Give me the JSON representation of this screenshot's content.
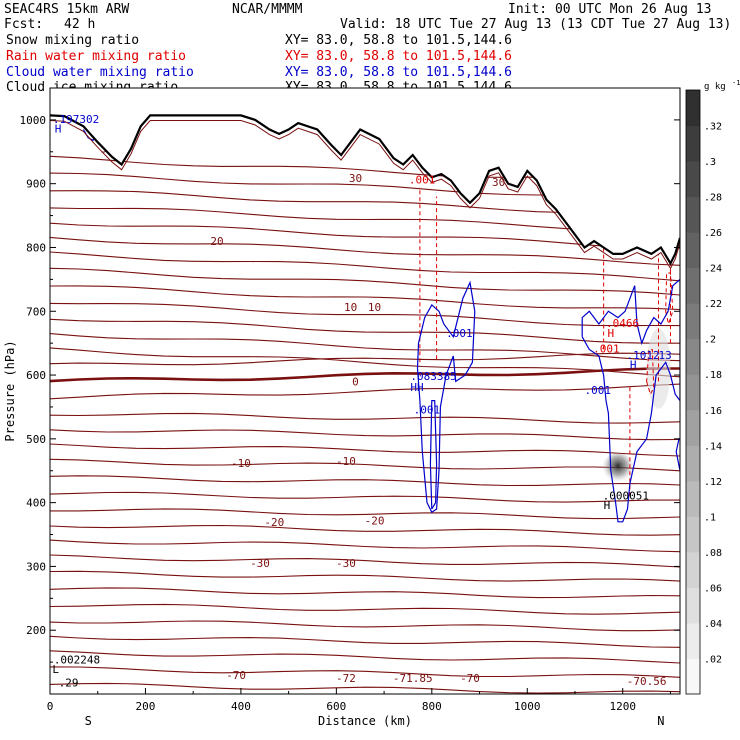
{
  "header": {
    "model": "SEAC4RS 15km ARW",
    "org": "NCAR/MMMM",
    "init": "Init: 00 UTC Mon 26 Aug 13",
    "fcst_label": "Fcst:",
    "fcst_value": "42 h",
    "valid": "Valid: 18 UTC Tue 27 Aug 13 (13 CDT Tue 27 Aug 13)",
    "fields": [
      {
        "name": "Snow mixing ratio",
        "xy": "XY=  83.0, 58.8 to 101.5,144.6",
        "color": "#000000"
      },
      {
        "name": "Rain water mixing ratio",
        "xy": "XY=  83.0, 58.8 to 101.5,144.6",
        "color": "#e00000"
      },
      {
        "name": "Cloud water mixing ratio",
        "xy": "XY=  83.0, 58.8 to 101.5,144.6",
        "color": "#0000cc"
      },
      {
        "name": "Cloud ice mixing ratio",
        "xy": "XY=  83.0, 58.8 to 101.5,144.6",
        "color": "#000000"
      }
    ]
  },
  "chart_data": {
    "type": "cross-section",
    "xlabel": "Distance (km)",
    "ylabel": "Pressure (hPa)",
    "xlim": [
      0,
      1320
    ],
    "ylim": [
      1050,
      100
    ],
    "x_ticks": [
      0,
      200,
      400,
      600,
      800,
      1000,
      1200
    ],
    "y_ticks": [
      200,
      300,
      400,
      500,
      600,
      700,
      800,
      900,
      1000
    ],
    "endpoints": {
      "left": "S",
      "right": "N"
    },
    "colorbar": {
      "unit": "g kg",
      "unit_sup": "-1",
      "ticks": [
        ".02",
        ".04",
        ".06",
        ".08",
        ".1",
        ".12",
        ".14",
        ".16",
        ".18",
        ".2",
        ".22",
        ".24",
        ".26",
        ".28",
        ".3",
        ".32"
      ],
      "range": [
        0,
        0.34
      ]
    },
    "terrain_pressure": [
      [
        0,
        1007
      ],
      [
        30,
        1006
      ],
      [
        70,
        990
      ],
      [
        100,
        965
      ],
      [
        130,
        942
      ],
      [
        150,
        930
      ],
      [
        170,
        955
      ],
      [
        190,
        990
      ],
      [
        210,
        1007
      ],
      [
        300,
        1007
      ],
      [
        400,
        1007
      ],
      [
        430,
        1000
      ],
      [
        460,
        985
      ],
      [
        480,
        978
      ],
      [
        500,
        985
      ],
      [
        520,
        995
      ],
      [
        560,
        985
      ],
      [
        590,
        960
      ],
      [
        610,
        945
      ],
      [
        630,
        965
      ],
      [
        650,
        985
      ],
      [
        690,
        970
      ],
      [
        720,
        940
      ],
      [
        740,
        930
      ],
      [
        760,
        945
      ],
      [
        780,
        925
      ],
      [
        800,
        910
      ],
      [
        820,
        915
      ],
      [
        840,
        905
      ],
      [
        860,
        885
      ],
      [
        880,
        870
      ],
      [
        900,
        885
      ],
      [
        920,
        920
      ],
      [
        940,
        925
      ],
      [
        960,
        900
      ],
      [
        980,
        895
      ],
      [
        1000,
        920
      ],
      [
        1020,
        905
      ],
      [
        1040,
        875
      ],
      [
        1060,
        860
      ],
      [
        1080,
        840
      ],
      [
        1100,
        820
      ],
      [
        1120,
        800
      ],
      [
        1140,
        810
      ],
      [
        1160,
        800
      ],
      [
        1180,
        790
      ],
      [
        1200,
        790
      ],
      [
        1230,
        800
      ],
      [
        1260,
        790
      ],
      [
        1280,
        800
      ],
      [
        1300,
        775
      ],
      [
        1310,
        790
      ],
      [
        1320,
        815
      ]
    ],
    "temperature_contours": [
      {
        "level": "-70",
        "labels": [
          {
            "x": 390,
            "p": 130,
            "text": "-70"
          },
          {
            "x": 620,
            "p": 125,
            "text": "-72"
          },
          {
            "x": 760,
            "p": 125,
            "text": "-71.85"
          },
          {
            "x": 880,
            "p": 125,
            "text": "-70"
          },
          {
            "x": 1250,
            "p": 120,
            "text": "-70.56"
          }
        ],
        "left_p": 142,
        "right_p": 118
      },
      {
        "level": "-30",
        "labels": [
          {
            "x": 440,
            "p": 305,
            "text": "-30"
          },
          {
            "x": 620,
            "p": 305,
            "text": "-30"
          }
        ],
        "left_p": 315,
        "right_p": 295
      },
      {
        "level": "-20",
        "labels": [
          {
            "x": 470,
            "p": 370,
            "text": "-20"
          },
          {
            "x": 680,
            "p": 372,
            "text": "-20"
          }
        ],
        "left_p": 385,
        "right_p": 360
      },
      {
        "level": "-10",
        "labels": [
          {
            "x": 400,
            "p": 462,
            "text": "-10"
          },
          {
            "x": 620,
            "p": 465,
            "text": "-10"
          }
        ],
        "left_p": 475,
        "right_p": 450
      },
      {
        "level": "0",
        "labels": [
          {
            "x": 640,
            "p": 590,
            "text": "0"
          }
        ],
        "left_p": 578,
        "right_p": 602
      },
      {
        "level": "10",
        "labels": [
          {
            "x": 630,
            "p": 707,
            "text": "10"
          },
          {
            "x": 680,
            "p": 707,
            "text": "10"
          }
        ],
        "left_p": 720,
        "right_p": 685
      },
      {
        "level": "20",
        "labels": [
          {
            "x": 350,
            "p": 810,
            "text": "20"
          },
          {
            "x": 1250,
            "p": 805,
            "text": "20"
          }
        ],
        "left_p": 830,
        "right_p": 790
      },
      {
        "level": "30",
        "labels": [
          {
            "x": 640,
            "p": 909,
            "text": "30"
          },
          {
            "x": 940,
            "p": 903,
            "text": "30"
          },
          {
            "x": 120,
            "p": 955,
            "text": "30"
          }
        ],
        "left_p": 925,
        "right_p": 880
      }
    ],
    "temperature_line_pressures": [
      115,
      140,
      165,
      190,
      215,
      240,
      265,
      290,
      315,
      340,
      365,
      390,
      415,
      440,
      465,
      490,
      515,
      540,
      565,
      590,
      615,
      640,
      665,
      690,
      715,
      740,
      765,
      790,
      815,
      840,
      865,
      890,
      915,
      940
    ],
    "cloud_water_contours": [
      {
        "points": [
          [
            770,
            610
          ],
          [
            775,
            560
          ],
          [
            780,
            480
          ],
          [
            790,
            400
          ],
          [
            800,
            385
          ],
          [
            810,
            390
          ],
          [
            815,
            450
          ],
          [
            818,
            550
          ],
          [
            830,
            600
          ],
          [
            845,
            630
          ],
          [
            850,
            590
          ],
          [
            870,
            600
          ],
          [
            885,
            620
          ],
          [
            890,
            700
          ],
          [
            880,
            745
          ],
          [
            865,
            720
          ],
          [
            845,
            660
          ],
          [
            825,
            680
          ],
          [
            815,
            700
          ],
          [
            800,
            710
          ],
          [
            785,
            690
          ],
          [
            772,
            650
          ],
          [
            770,
            610
          ]
        ]
      },
      {
        "points": [
          [
            800,
            390
          ],
          [
            808,
            400
          ],
          [
            810,
            460
          ],
          [
            806,
            560
          ],
          [
            800,
            560
          ],
          [
            797,
            460
          ],
          [
            800,
            390
          ]
        ]
      },
      {
        "points": [
          [
            1115,
            660
          ],
          [
            1130,
            640
          ],
          [
            1150,
            630
          ],
          [
            1160,
            600
          ],
          [
            1165,
            560
          ],
          [
            1170,
            540
          ],
          [
            1175,
            450
          ],
          [
            1185,
            400
          ],
          [
            1190,
            370
          ],
          [
            1200,
            370
          ],
          [
            1210,
            390
          ],
          [
            1215,
            430
          ],
          [
            1230,
            480
          ],
          [
            1250,
            500
          ],
          [
            1260,
            540
          ],
          [
            1270,
            600
          ],
          [
            1290,
            620
          ],
          [
            1300,
            600
          ],
          [
            1310,
            570
          ],
          [
            1320,
            560
          ],
          [
            1320,
            750
          ],
          [
            1305,
            740
          ],
          [
            1295,
            700
          ],
          [
            1280,
            680
          ],
          [
            1265,
            690
          ],
          [
            1250,
            670
          ],
          [
            1240,
            650
          ],
          [
            1230,
            680
          ],
          [
            1225,
            740
          ],
          [
            1205,
            700
          ],
          [
            1190,
            690
          ],
          [
            1170,
            700
          ],
          [
            1150,
            680
          ],
          [
            1130,
            700
          ],
          [
            1115,
            690
          ],
          [
            1115,
            660
          ]
        ]
      },
      {
        "points": [
          [
            1320,
            450
          ],
          [
            1312,
            480
          ],
          [
            1318,
            500
          ],
          [
            1320,
            500
          ]
        ]
      },
      {
        "points": [
          [
            70,
            985
          ],
          [
            80,
            972
          ],
          [
            90,
            968
          ],
          [
            96,
            978
          ],
          [
            92,
            990
          ]
        ]
      }
    ],
    "rain_columns": [
      {
        "x": 775,
        "p_top": 620,
        "p_bottom": 895
      },
      {
        "x": 810,
        "p_top": 625,
        "p_bottom": 880
      },
      {
        "x": 1160,
        "p_top": 640,
        "p_bottom": 800
      },
      {
        "x": 1215,
        "p_top": 410,
        "p_bottom": 585
      },
      {
        "x": 1275,
        "p_top": 590,
        "p_bottom": 790
      },
      {
        "x": 1300,
        "p_top": 650,
        "p_bottom": 780
      }
    ],
    "rain_loops": [
      {
        "points": [
          [
            1250,
            590
          ],
          [
            1258,
            570
          ],
          [
            1265,
            580
          ],
          [
            1262,
            640
          ],
          [
            1255,
            640
          ],
          [
            1250,
            590
          ]
        ]
      },
      {
        "points": [
          [
            1290,
            700
          ],
          [
            1296,
            680
          ],
          [
            1305,
            700
          ],
          [
            1300,
            760
          ],
          [
            1292,
            760
          ],
          [
            1290,
            700
          ]
        ]
      }
    ],
    "cloud_ice_plume": {
      "x": 1190,
      "p_top": 375,
      "p_bottom": 530,
      "max": 0.33
    },
    "annotations": [
      {
        "text": ".29",
        "x": 18,
        "p": 112,
        "color": "#000000"
      },
      {
        "text": "L",
        "x": 5,
        "p": 133,
        "color": "#000000"
      },
      {
        "text": ".002248",
        "x": 8,
        "p": 148,
        "color": "#000000"
      },
      {
        "text": "H",
        "x": 1160,
        "p": 390,
        "color": "#000000"
      },
      {
        "text": ".000051",
        "x": 1158,
        "p": 405,
        "color": "#000000"
      },
      {
        "text": ".001",
        "x": 762,
        "p": 540,
        "color": "#0000cc"
      },
      {
        "text": "HH",
        "x": 755,
        "p": 575,
        "color": "#0000cc"
      },
      {
        "text": ".083385",
        "x": 755,
        "p": 592,
        "color": "#0000cc"
      },
      {
        "text": ".001",
        "x": 830,
        "p": 660,
        "color": "#0000cc"
      },
      {
        "text": ".001",
        "x": 1120,
        "p": 570,
        "color": "#0000cc"
      },
      {
        "text": "H",
        "x": 1215,
        "p": 610,
        "color": "#0000cc"
      },
      {
        "text": ".1012",
        "x": 1208,
        "p": 625,
        "color": "#0000cc"
      },
      {
        "text": "13",
        "x": 1275,
        "p": 625,
        "color": "#0000cc"
      },
      {
        "text": ".001",
        "x": 1138,
        "p": 635,
        "color": "#e00000"
      },
      {
        "text": "H",
        "x": 1168,
        "p": 660,
        "color": "#e00000"
      },
      {
        "text": ".0466",
        "x": 1165,
        "p": 675,
        "color": "#e00000"
      },
      {
        "text": ".001",
        "x": 752,
        "p": 900,
        "color": "#e00000"
      },
      {
        "text": "H",
        "x": 10,
        "p": 980,
        "color": "#0000cc"
      },
      {
        "text": ".197302",
        "x": 6,
        "p": 995,
        "color": "#0000cc"
      }
    ]
  }
}
